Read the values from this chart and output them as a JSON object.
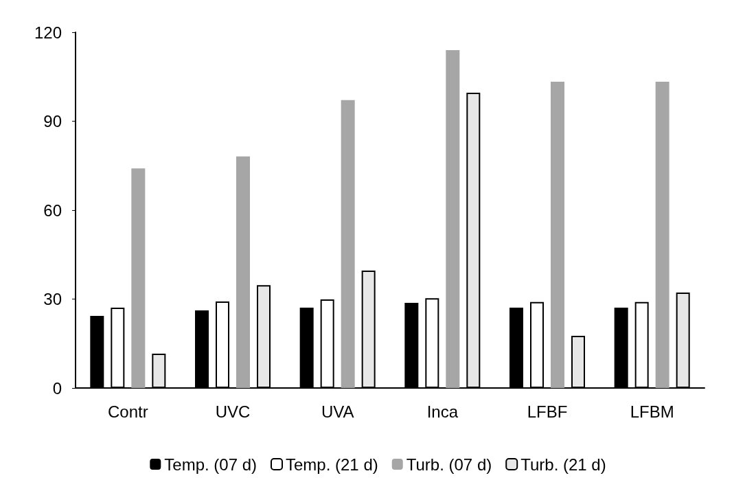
{
  "chart_data": {
    "type": "bar",
    "categories": [
      "Contr",
      "UVC",
      "UVA",
      "Inca",
      "LFBF",
      "LFBM"
    ],
    "series": [
      {
        "name": "Temp. (07 d)",
        "color": "#000000",
        "values": [
          24.3,
          26.2,
          27.1,
          28.7,
          27.1,
          27.1
        ]
      },
      {
        "name": "Temp. (21 d)",
        "color": "#ffffff",
        "values": [
          27.1,
          29.2,
          29.9,
          30.3,
          29,
          29
        ]
      },
      {
        "name": "Turb. (07 d)",
        "color": "#a6a6a6",
        "values": [
          74.1,
          78.1,
          97.1,
          114,
          103.3,
          103.3
        ]
      },
      {
        "name": "Turb. (21 d)",
        "color": "#e7e7e7",
        "values": [
          11.6,
          34.7,
          39.6,
          99.6,
          17.6,
          32.2
        ]
      }
    ],
    "ylim": [
      0,
      120
    ],
    "yticks": [
      0,
      30,
      60,
      90,
      120
    ],
    "grid": false,
    "legend": "bottom"
  }
}
